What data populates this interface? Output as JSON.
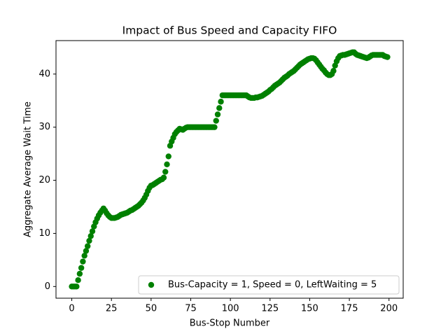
{
  "chart_data": {
    "type": "scatter",
    "title": "Impact of Bus Speed and Capacity FIFO",
    "x_label": "Bus-Stop Number",
    "y_label": "Aggregate Average Wait Time",
    "xlim": [
      -9.95,
      208.95
    ],
    "ylim": [
      -2.2,
      46.3
    ],
    "xticks": [
      0,
      25,
      50,
      75,
      100,
      125,
      150,
      175,
      200
    ],
    "yticks": [
      0,
      10,
      20,
      30,
      40
    ],
    "legend": "lower right",
    "series": [
      {
        "name": "Bus-Capacity = 1, Speed = 0, LeftWaiting = 5",
        "color": "#008000",
        "x": [
          0,
          1,
          2,
          3,
          4,
          5,
          6,
          7,
          8,
          9,
          10,
          11,
          12,
          13,
          14,
          15,
          16,
          17,
          18,
          19,
          20,
          21,
          22,
          23,
          24,
          25,
          26,
          27,
          28,
          29,
          30,
          31,
          32,
          33,
          34,
          35,
          36,
          37,
          38,
          39,
          40,
          41,
          42,
          43,
          44,
          45,
          46,
          47,
          48,
          49,
          50,
          51,
          52,
          53,
          54,
          55,
          56,
          57,
          58,
          59,
          60,
          61,
          62,
          63,
          64,
          65,
          66,
          67,
          68,
          69,
          70,
          71,
          72,
          73,
          74,
          75,
          76,
          77,
          78,
          79,
          80,
          81,
          82,
          83,
          84,
          85,
          86,
          87,
          88,
          89,
          90,
          91,
          92,
          93,
          94,
          95,
          96,
          97,
          98,
          99,
          100,
          101,
          102,
          103,
          104,
          105,
          106,
          107,
          108,
          109,
          110,
          111,
          112,
          113,
          114,
          115,
          116,
          117,
          118,
          119,
          120,
          121,
          122,
          123,
          124,
          125,
          126,
          127,
          128,
          129,
          130,
          131,
          132,
          133,
          134,
          135,
          136,
          137,
          138,
          139,
          140,
          141,
          142,
          143,
          144,
          145,
          146,
          147,
          148,
          149,
          150,
          151,
          152,
          153,
          154,
          155,
          156,
          157,
          158,
          159,
          160,
          161,
          162,
          163,
          164,
          165,
          166,
          167,
          168,
          169,
          170,
          171,
          172,
          173,
          174,
          175,
          176,
          177,
          178,
          179,
          180,
          181,
          182,
          183,
          184,
          185,
          186,
          187,
          188,
          189,
          190,
          191,
          192,
          193,
          194,
          195,
          196,
          197,
          198,
          199
        ],
        "values": [
          0,
          0,
          0,
          0,
          1.2,
          2.4,
          3.5,
          4.7,
          5.8,
          6.7,
          7.6,
          8.6,
          9.5,
          10.4,
          11.3,
          12.1,
          12.8,
          13.4,
          13.9,
          14.3,
          14.7,
          14.3,
          13.8,
          13.4,
          13.1,
          12.9,
          12.9,
          12.9,
          13.0,
          13.1,
          13.3,
          13.5,
          13.6,
          13.7,
          13.8,
          13.9,
          14.1,
          14.3,
          14.4,
          14.6,
          14.8,
          15.0,
          15.2,
          15.5,
          15.8,
          16.2,
          16.7,
          17.3,
          18.0,
          18.6,
          19.0,
          19.1,
          19.3,
          19.5,
          19.7,
          19.9,
          20.1,
          20.2,
          20.5,
          21.6,
          23.0,
          24.5,
          26.5,
          27.3,
          28.0,
          28.7,
          29.1,
          29.4,
          29.7,
          29.6,
          29.5,
          29.7,
          29.9,
          30,
          30,
          30,
          30,
          30,
          30,
          30,
          30,
          30,
          30,
          30,
          30,
          30,
          30,
          30,
          30,
          30,
          30,
          31.2,
          32.4,
          33.6,
          34.8,
          36,
          36,
          36,
          36,
          36,
          36,
          36,
          36,
          36,
          36,
          36,
          36,
          36,
          36,
          36,
          36,
          35.8,
          35.6,
          35.5,
          35.5,
          35.5,
          35.6,
          35.6,
          35.7,
          35.8,
          35.9,
          36.1,
          36.3,
          36.5,
          36.7,
          37.0,
          37.2,
          37.5,
          37.8,
          38.0,
          38.2,
          38.4,
          38.7,
          39.0,
          39.3,
          39.5,
          39.7,
          40.0,
          40.2,
          40.4,
          40.6,
          40.9,
          41.2,
          41.5,
          41.8,
          42.0,
          42.2,
          42.4,
          42.6,
          42.8,
          42.9,
          43.0,
          43.0,
          42.9,
          42.6,
          42.2,
          41.8,
          41.4,
          41.0,
          40.7,
          40.3,
          40.0,
          39.8,
          39.8,
          40.0,
          40.6,
          41.6,
          42.4,
          43.0,
          43.4,
          43.5,
          43.6,
          43.6,
          43.7,
          43.8,
          43.9,
          44.0,
          44.1,
          44.1,
          43.8,
          43.6,
          43.5,
          43.4,
          43.3,
          43.2,
          43.1,
          43.0,
          43.1,
          43.3,
          43.5,
          43.6,
          43.6,
          43.6,
          43.6,
          43.6,
          43.6,
          43.6,
          43.4,
          43.3,
          43.2
        ]
      }
    ]
  }
}
